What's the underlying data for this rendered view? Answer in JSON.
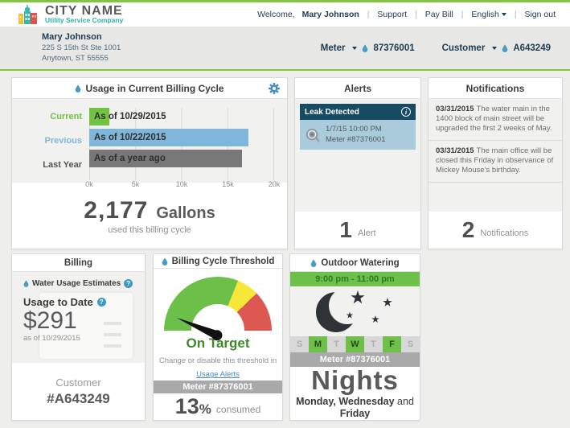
{
  "brand": {
    "name": "CITY NAME",
    "tagline": "Utility Service Company"
  },
  "topnav": {
    "welcome": "Welcome,",
    "user": "Mary Johnson",
    "support": "Support",
    "pay_bill": "Pay Bill",
    "language": "English",
    "sign_out": "Sign out"
  },
  "account": {
    "name": "Mary Johnson",
    "address1": "225 S 15th St Ste 1001",
    "address2": "Anytown, ST 55555",
    "meter_label": "Meter",
    "meter_id": "87376001",
    "customer_label": "Customer",
    "customer_id": "A643249"
  },
  "usage_card": {
    "title": "Usage in Current Billing Cycle",
    "total": "2,177",
    "unit": "Gallons",
    "subtitle": "used this billing cycle"
  },
  "chart_data": {
    "type": "bar",
    "orientation": "horizontal",
    "title": "Usage in Current Billing Cycle",
    "categories": [
      "Current",
      "Previous",
      "Last Year"
    ],
    "values": [
      2177,
      17300,
      16600
    ],
    "bar_labels": [
      "As of 10/29/2015",
      "As of 10/22/2015",
      "As of a year ago"
    ],
    "bar_colors": [
      "#71c242",
      "#7fb6d9",
      "#787878"
    ],
    "category_colors": [
      "#71c242",
      "#7fb6d9",
      "#555555"
    ],
    "xlim": [
      0,
      20000
    ],
    "xticks": [
      "0k",
      "5k",
      "10k",
      "15k",
      "20k"
    ],
    "grid": true,
    "unit": "gallons"
  },
  "alerts_card": {
    "title": "Alerts",
    "alert_title": "Leak Detected",
    "alert_time": "1/7/15 10:00 PM",
    "alert_meter": "Meter #87376001",
    "count": "1",
    "count_label": "Alert"
  },
  "notifications_card": {
    "title": "Notifications",
    "items": [
      {
        "date": "03/31/2015",
        "text": "The water main in the 1400 block of main street will be upgraded the first 2 weeks of May."
      },
      {
        "date": "03/31/2015",
        "text": "The main office will be closed this Friday in observance of Mickey Mouse's birthday."
      }
    ],
    "count": "2",
    "count_label": "Notifications"
  },
  "billing_card": {
    "title": "Billing",
    "estimates_label": "Water Usage Estimates",
    "usage_label": "Usage to Date",
    "amount": "$291",
    "as_of": "as of 10/29/2015",
    "customer_label": "Customer",
    "customer_number": "#A643249"
  },
  "threshold_card": {
    "title": "Billing Cycle Threshold",
    "status": "On Target",
    "hint": "Change or disable this threshold in",
    "link": "Usage Alerts",
    "meter": "Meter #87376001",
    "percent": "13",
    "percent_value": 13,
    "percent_sign": "%",
    "consumed_label": "consumed"
  },
  "watering_card": {
    "title": "Outdoor Watering",
    "time_window": "9:00 pm - 11:00 pm",
    "days": [
      "S",
      "M",
      "T",
      "W",
      "T",
      "F",
      "S"
    ],
    "active_days": [
      1,
      3,
      5
    ],
    "meter": "Meter #87376001",
    "schedule_name": "Nights",
    "days_line_bold": "Monday, Wednesday",
    "days_line_and": "and",
    "days_line_friday": "Friday"
  },
  "colors": {
    "accent_green": "#84c441",
    "brand_teal": "#2bb3ae",
    "navy_text": "#1e3c52",
    "alert_navy": "#174a63",
    "alert_blue": "#a9cbdc",
    "gauge_green": "#6cc04a",
    "gauge_yellow": "#f6e838",
    "gauge_red": "#dd5850",
    "link_blue": "#4a90c4",
    "drop_blue": "#4a9bc4",
    "status_green_text": "#3f8a28"
  }
}
